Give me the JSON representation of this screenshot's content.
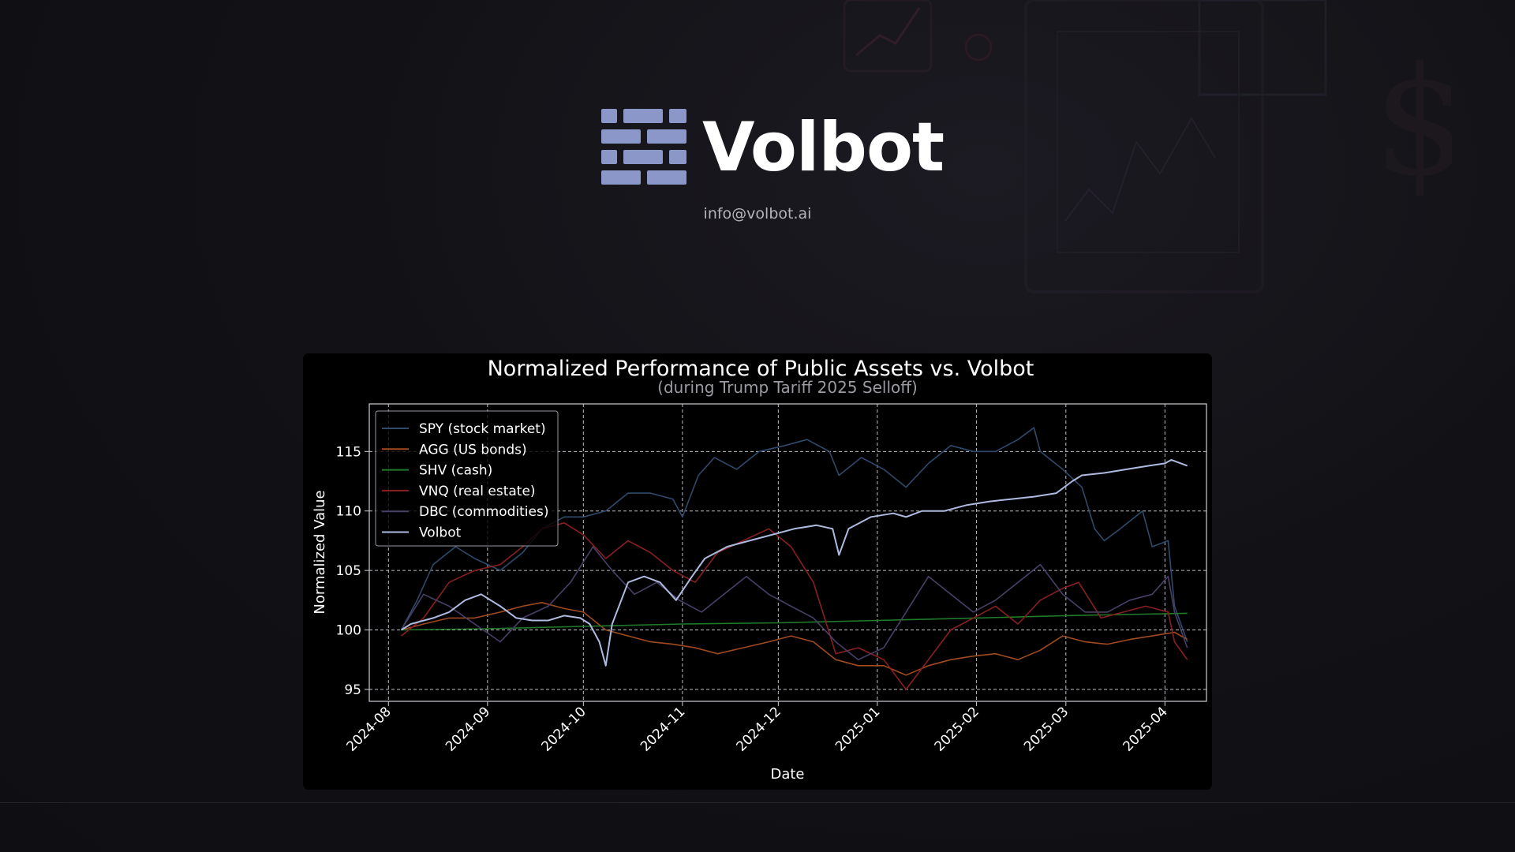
{
  "brand": {
    "name": "Volbot",
    "email": "info@volbot.ai",
    "logo_color": "#8a97c8"
  },
  "chart_data": {
    "type": "line",
    "title": "Normalized Performance of Public Assets vs. Volbot",
    "subtitle": "(during Trump Tariff 2025 Selloff)",
    "xlabel": "Date",
    "ylabel": "Normalized Value",
    "x_axis_type": "date",
    "xlim": [
      "2024-07-26",
      "2025-04-14"
    ],
    "ylim": [
      94,
      119
    ],
    "x_ticks": [
      "2024-08",
      "2024-09",
      "2024-10",
      "2024-11",
      "2024-12",
      "2025-01",
      "2025-02",
      "2025-03",
      "2025-04"
    ],
    "y_ticks": [
      95,
      100,
      105,
      110,
      115
    ],
    "grid": true,
    "legend_position": "top-left",
    "series": [
      {
        "name": "SPY (stock market)",
        "color": "#2f4a6b",
        "points": [
          [
            "2024-08-05",
            100
          ],
          [
            "2024-08-10",
            102.5
          ],
          [
            "2024-08-15",
            105.5
          ],
          [
            "2024-08-22",
            107
          ],
          [
            "2024-08-28",
            106
          ],
          [
            "2024-09-05",
            105
          ],
          [
            "2024-09-12",
            106.5
          ],
          [
            "2024-09-18",
            108.5
          ],
          [
            "2024-09-25",
            109.5
          ],
          [
            "2024-10-01",
            109.5
          ],
          [
            "2024-10-08",
            110
          ],
          [
            "2024-10-15",
            111.5
          ],
          [
            "2024-10-22",
            111.5
          ],
          [
            "2024-10-29",
            111
          ],
          [
            "2024-11-01",
            109.5
          ],
          [
            "2024-11-06",
            113
          ],
          [
            "2024-11-11",
            114.5
          ],
          [
            "2024-11-18",
            113.5
          ],
          [
            "2024-11-25",
            115
          ],
          [
            "2024-12-03",
            115.5
          ],
          [
            "2024-12-10",
            116
          ],
          [
            "2024-12-17",
            115
          ],
          [
            "2024-12-20",
            113
          ],
          [
            "2024-12-27",
            114.5
          ],
          [
            "2025-01-03",
            113.5
          ],
          [
            "2025-01-10",
            112
          ],
          [
            "2025-01-17",
            114
          ],
          [
            "2025-01-24",
            115.5
          ],
          [
            "2025-01-31",
            115
          ],
          [
            "2025-02-07",
            115
          ],
          [
            "2025-02-14",
            116
          ],
          [
            "2025-02-19",
            117
          ],
          [
            "2025-02-21",
            115
          ],
          [
            "2025-02-28",
            113.5
          ],
          [
            "2025-03-06",
            112
          ],
          [
            "2025-03-10",
            108.5
          ],
          [
            "2025-03-13",
            107.5
          ],
          [
            "2025-03-18",
            108.5
          ],
          [
            "2025-03-25",
            110
          ],
          [
            "2025-03-28",
            107
          ],
          [
            "2025-04-02",
            107.5
          ],
          [
            "2025-04-04",
            102
          ],
          [
            "2025-04-08",
            99
          ]
        ]
      },
      {
        "name": "AGG (US bonds)",
        "color": "#a04a1f",
        "points": [
          [
            "2024-08-05",
            100
          ],
          [
            "2024-08-12",
            100.5
          ],
          [
            "2024-08-20",
            101
          ],
          [
            "2024-08-28",
            101
          ],
          [
            "2024-09-05",
            101.5
          ],
          [
            "2024-09-12",
            102
          ],
          [
            "2024-09-18",
            102.3
          ],
          [
            "2024-09-25",
            101.8
          ],
          [
            "2024-10-01",
            101.5
          ],
          [
            "2024-10-08",
            100
          ],
          [
            "2024-10-15",
            99.5
          ],
          [
            "2024-10-22",
            99
          ],
          [
            "2024-10-29",
            98.8
          ],
          [
            "2024-11-05",
            98.5
          ],
          [
            "2024-11-12",
            98
          ],
          [
            "2024-11-20",
            98.5
          ],
          [
            "2024-11-28",
            99
          ],
          [
            "2024-12-05",
            99.5
          ],
          [
            "2024-12-12",
            99
          ],
          [
            "2024-12-19",
            97.5
          ],
          [
            "2024-12-26",
            97
          ],
          [
            "2025-01-03",
            97
          ],
          [
            "2025-01-10",
            96.2
          ],
          [
            "2025-01-17",
            97
          ],
          [
            "2025-01-24",
            97.5
          ],
          [
            "2025-01-31",
            97.8
          ],
          [
            "2025-02-07",
            98
          ],
          [
            "2025-02-14",
            97.5
          ],
          [
            "2025-02-21",
            98.3
          ],
          [
            "2025-02-28",
            99.5
          ],
          [
            "2025-03-07",
            99
          ],
          [
            "2025-03-14",
            98.8
          ],
          [
            "2025-03-21",
            99.2
          ],
          [
            "2025-03-28",
            99.5
          ],
          [
            "2025-04-04",
            99.8
          ],
          [
            "2025-04-08",
            99.2
          ]
        ]
      },
      {
        "name": "SHV (cash)",
        "color": "#1f7a2a",
        "points": [
          [
            "2024-08-05",
            100
          ],
          [
            "2024-09-01",
            100.1
          ],
          [
            "2024-10-01",
            100.3
          ],
          [
            "2024-11-01",
            100.5
          ],
          [
            "2024-12-01",
            100.6
          ],
          [
            "2025-01-01",
            100.8
          ],
          [
            "2025-02-01",
            101
          ],
          [
            "2025-03-01",
            101.2
          ],
          [
            "2025-04-08",
            101.4
          ]
        ]
      },
      {
        "name": "VNQ (real estate)",
        "color": "#8a1f22",
        "points": [
          [
            "2024-08-05",
            99.5
          ],
          [
            "2024-08-12",
            101
          ],
          [
            "2024-08-20",
            104
          ],
          [
            "2024-08-28",
            105
          ],
          [
            "2024-09-05",
            105.5
          ],
          [
            "2024-09-12",
            107
          ],
          [
            "2024-09-18",
            108.5
          ],
          [
            "2024-09-25",
            109
          ],
          [
            "2024-10-01",
            108
          ],
          [
            "2024-10-08",
            106
          ],
          [
            "2024-10-15",
            107.5
          ],
          [
            "2024-10-22",
            106.5
          ],
          [
            "2024-10-29",
            105
          ],
          [
            "2024-11-05",
            104
          ],
          [
            "2024-11-12",
            106.5
          ],
          [
            "2024-11-20",
            107.5
          ],
          [
            "2024-11-28",
            108.5
          ],
          [
            "2024-12-05",
            107
          ],
          [
            "2024-12-12",
            104
          ],
          [
            "2024-12-19",
            98
          ],
          [
            "2024-12-26",
            98.5
          ],
          [
            "2025-01-03",
            97.5
          ],
          [
            "2025-01-10",
            95
          ],
          [
            "2025-01-17",
            97.5
          ],
          [
            "2025-01-24",
            100
          ],
          [
            "2025-01-31",
            101
          ],
          [
            "2025-02-07",
            102
          ],
          [
            "2025-02-14",
            100.5
          ],
          [
            "2025-02-21",
            102.5
          ],
          [
            "2025-02-28",
            103.5
          ],
          [
            "2025-03-05",
            104
          ],
          [
            "2025-03-12",
            101
          ],
          [
            "2025-03-19",
            101.5
          ],
          [
            "2025-03-26",
            102
          ],
          [
            "2025-04-02",
            101.5
          ],
          [
            "2025-04-04",
            99
          ],
          [
            "2025-04-08",
            97.5
          ]
        ]
      },
      {
        "name": "DBC (commodities)",
        "color": "#4a3f66",
        "points": [
          [
            "2024-08-05",
            100
          ],
          [
            "2024-08-12",
            103
          ],
          [
            "2024-08-20",
            102
          ],
          [
            "2024-08-28",
            100.5
          ],
          [
            "2024-09-05",
            99
          ],
          [
            "2024-09-12",
            101
          ],
          [
            "2024-09-20",
            102
          ],
          [
            "2024-09-27",
            104
          ],
          [
            "2024-10-04",
            107
          ],
          [
            "2024-10-10",
            105
          ],
          [
            "2024-10-17",
            103
          ],
          [
            "2024-10-24",
            104
          ],
          [
            "2024-10-31",
            102.5
          ],
          [
            "2024-11-07",
            101.5
          ],
          [
            "2024-11-14",
            103
          ],
          [
            "2024-11-21",
            104.5
          ],
          [
            "2024-11-28",
            103
          ],
          [
            "2024-12-05",
            102
          ],
          [
            "2024-12-12",
            101
          ],
          [
            "2024-12-19",
            99
          ],
          [
            "2024-12-26",
            97.5
          ],
          [
            "2025-01-03",
            98.5
          ],
          [
            "2025-01-10",
            101.5
          ],
          [
            "2025-01-17",
            104.5
          ],
          [
            "2025-01-24",
            103
          ],
          [
            "2025-01-31",
            101.5
          ],
          [
            "2025-02-07",
            102.5
          ],
          [
            "2025-02-14",
            104
          ],
          [
            "2025-02-21",
            105.5
          ],
          [
            "2025-02-28",
            103
          ],
          [
            "2025-03-07",
            101.5
          ],
          [
            "2025-03-14",
            101.5
          ],
          [
            "2025-03-21",
            102.5
          ],
          [
            "2025-03-28",
            103
          ],
          [
            "2025-04-02",
            104.5
          ],
          [
            "2025-04-04",
            101.5
          ],
          [
            "2025-04-08",
            98.5
          ]
        ]
      },
      {
        "name": "Volbot",
        "color": "#aebbe0",
        "points": [
          [
            "2024-08-05",
            100
          ],
          [
            "2024-08-08",
            100.5
          ],
          [
            "2024-08-15",
            101
          ],
          [
            "2024-08-20",
            101.5
          ],
          [
            "2024-08-25",
            102.5
          ],
          [
            "2024-08-30",
            103
          ],
          [
            "2024-09-05",
            102
          ],
          [
            "2024-09-10",
            101
          ],
          [
            "2024-09-15",
            100.8
          ],
          [
            "2024-09-20",
            100.8
          ],
          [
            "2024-09-25",
            101.2
          ],
          [
            "2024-09-30",
            101
          ],
          [
            "2024-10-03",
            100.5
          ],
          [
            "2024-10-06",
            99
          ],
          [
            "2024-10-08",
            97
          ],
          [
            "2024-10-10",
            100.5
          ],
          [
            "2024-10-15",
            104
          ],
          [
            "2024-10-20",
            104.5
          ],
          [
            "2024-10-25",
            104
          ],
          [
            "2024-10-30",
            102.5
          ],
          [
            "2024-11-04",
            104.5
          ],
          [
            "2024-11-08",
            106
          ],
          [
            "2024-11-15",
            107
          ],
          [
            "2024-11-22",
            107.5
          ],
          [
            "2024-11-29",
            108
          ],
          [
            "2024-12-06",
            108.5
          ],
          [
            "2024-12-13",
            108.8
          ],
          [
            "2024-12-18",
            108.5
          ],
          [
            "2024-12-20",
            106.3
          ],
          [
            "2024-12-23",
            108.5
          ],
          [
            "2024-12-30",
            109.5
          ],
          [
            "2025-01-06",
            109.8
          ],
          [
            "2025-01-10",
            109.5
          ],
          [
            "2025-01-15",
            110
          ],
          [
            "2025-01-22",
            110
          ],
          [
            "2025-01-29",
            110.5
          ],
          [
            "2025-02-05",
            110.8
          ],
          [
            "2025-02-12",
            111
          ],
          [
            "2025-02-19",
            111.2
          ],
          [
            "2025-02-26",
            111.5
          ],
          [
            "2025-03-03",
            112.5
          ],
          [
            "2025-03-06",
            113
          ],
          [
            "2025-03-13",
            113.2
          ],
          [
            "2025-03-20",
            113.5
          ],
          [
            "2025-03-27",
            113.8
          ],
          [
            "2025-04-01",
            114
          ],
          [
            "2025-04-03",
            114.3
          ],
          [
            "2025-04-08",
            113.8
          ]
        ]
      }
    ]
  }
}
